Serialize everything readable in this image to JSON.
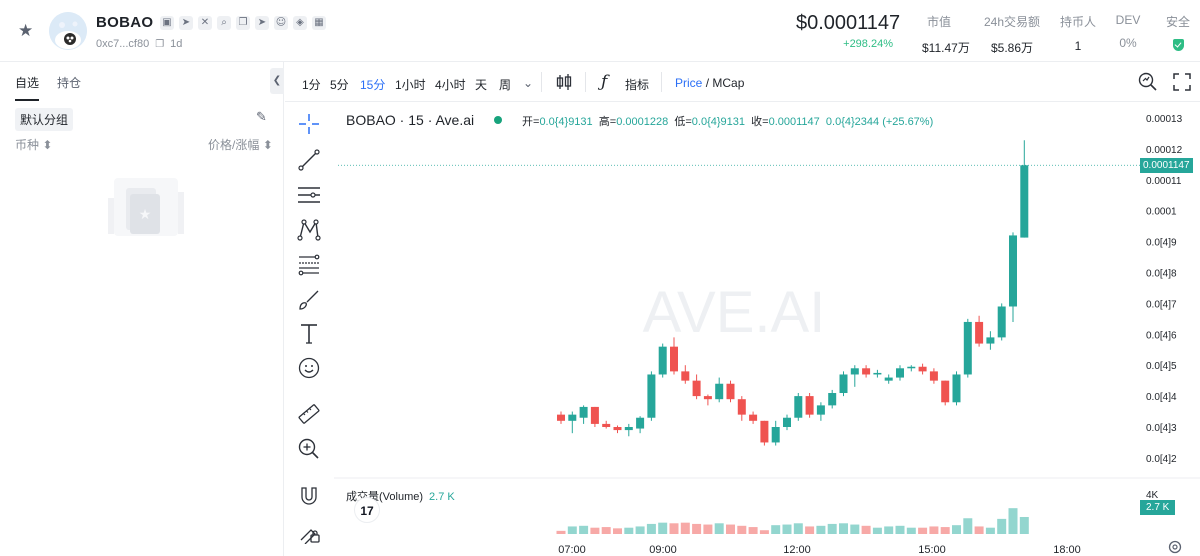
{
  "header": {
    "token_name": "BOBAO",
    "address": "0xc7...cf80",
    "age": "1d",
    "price": "$0.0001147",
    "price_change": "+298.24%",
    "stats": [
      {
        "label": "市值",
        "value": "$11.47万"
      },
      {
        "label": "24h交易额",
        "value": "$5.86万"
      },
      {
        "label": "持币人",
        "value": "1"
      },
      {
        "label": "DEV",
        "value": "0%"
      },
      {
        "label": "安全"
      }
    ]
  },
  "sidebar": {
    "tabs": [
      "自选",
      "持仓"
    ],
    "group": "默认分组",
    "col_left": "币种",
    "col_right": "价格/涨幅"
  },
  "toolbar": {
    "timeframes": [
      "1分",
      "5分",
      "15分",
      "1小时",
      "4小时",
      "天",
      "周"
    ],
    "active_timeframe": "15分",
    "indicators_label": "指标",
    "price_label": "Price",
    "mcap_label": "MCap",
    "slash": "/"
  },
  "chart": {
    "symbol": "BOBAO · 15 · Ave.ai",
    "ohlc": {
      "open_label": "开=",
      "open": "0.0{4}9131",
      "high_label": "高=",
      "high": "0.0001228",
      "low_label": "低=",
      "low": "0.0{4}9131",
      "close_label": "收=",
      "close": "0.0001147",
      "change": "0.0{4}2344 (+25.67%)"
    },
    "watermark": "AVE.AI",
    "current_price_badge": "0.0001147",
    "volume_label": "成交量(Volume)",
    "volume_value": "2.7 K",
    "volume_badge": "2.7 K",
    "volume_axis_tick": "4K",
    "colors": {
      "up": "#26a69a",
      "down": "#ef5350",
      "up_vol": "#93d6cf",
      "down_vol": "#f7a9a7"
    }
  },
  "chart_data": {
    "type": "candlestick",
    "y_ticks": [
      "0.00013",
      "0.00012",
      "0.00011",
      "0.0001",
      "0.0[4]9",
      "0.0[4]8",
      "0.0[4]7",
      "0.0[4]6",
      "0.0[4]5",
      "0.0[4]4",
      "0.0[4]3",
      "0.0[4]2"
    ],
    "ylim": [
      2e-05,
      0.00013
    ],
    "x_ticks": [
      "07:00",
      "09:00",
      "12:00",
      "15:00",
      "18:00"
    ],
    "candles": [
      {
        "o": 3.4e-05,
        "h": 3.5e-05,
        "l": 3.1e-05,
        "c": 3.2e-05
      },
      {
        "o": 3.2e-05,
        "h": 3.5e-05,
        "l": 2.8e-05,
        "c": 3.4e-05
      },
      {
        "o": 3.3e-05,
        "h": 3.7e-05,
        "l": 3.1e-05,
        "c": 3.65e-05
      },
      {
        "o": 3.65e-05,
        "h": 3.65e-05,
        "l": 3e-05,
        "c": 3.1e-05
      },
      {
        "o": 3.1e-05,
        "h": 3.2e-05,
        "l": 2.95e-05,
        "c": 3e-05
      },
      {
        "o": 3e-05,
        "h": 3.05e-05,
        "l": 2.8e-05,
        "c": 2.9e-05
      },
      {
        "o": 2.9e-05,
        "h": 3.1e-05,
        "l": 2.7e-05,
        "c": 3e-05
      },
      {
        "o": 2.95e-05,
        "h": 3.35e-05,
        "l": 2.8e-05,
        "c": 3.3e-05
      },
      {
        "o": 3.3e-05,
        "h": 4.8e-05,
        "l": 3.2e-05,
        "c": 4.7e-05
      },
      {
        "o": 4.7e-05,
        "h": 5.7e-05,
        "l": 4.6e-05,
        "c": 5.6e-05
      },
      {
        "o": 5.6e-05,
        "h": 5.9e-05,
        "l": 4.7e-05,
        "c": 4.8e-05
      },
      {
        "o": 4.8e-05,
        "h": 5e-05,
        "l": 4.4e-05,
        "c": 4.5e-05
      },
      {
        "o": 4.5e-05,
        "h": 4.7e-05,
        "l": 3.9e-05,
        "c": 4e-05
      },
      {
        "o": 4e-05,
        "h": 4.05e-05,
        "l": 3.7e-05,
        "c": 3.9e-05
      },
      {
        "o": 3.9e-05,
        "h": 4.6e-05,
        "l": 3.8e-05,
        "c": 4.4e-05
      },
      {
        "o": 4.4e-05,
        "h": 4.5e-05,
        "l": 3.8e-05,
        "c": 3.9e-05
      },
      {
        "o": 3.9e-05,
        "h": 4e-05,
        "l": 3.2e-05,
        "c": 3.4e-05
      },
      {
        "o": 3.4e-05,
        "h": 3.5e-05,
        "l": 3.1e-05,
        "c": 3.2e-05
      },
      {
        "o": 3.2e-05,
        "h": 3.2e-05,
        "l": 2.4e-05,
        "c": 2.5e-05
      },
      {
        "o": 2.5e-05,
        "h": 3.2e-05,
        "l": 2.4e-05,
        "c": 3e-05
      },
      {
        "o": 3e-05,
        "h": 3.4e-05,
        "l": 2.9e-05,
        "c": 3.3e-05
      },
      {
        "o": 3.3e-05,
        "h": 4.1e-05,
        "l": 3.2e-05,
        "c": 4e-05
      },
      {
        "o": 4e-05,
        "h": 4.1e-05,
        "l": 3.3e-05,
        "c": 3.4e-05
      },
      {
        "o": 3.4e-05,
        "h": 3.8e-05,
        "l": 3.2e-05,
        "c": 3.7e-05
      },
      {
        "o": 3.7e-05,
        "h": 4.2e-05,
        "l": 3.6e-05,
        "c": 4.1e-05
      },
      {
        "o": 4.1e-05,
        "h": 4.8e-05,
        "l": 4e-05,
        "c": 4.7e-05
      },
      {
        "o": 4.7e-05,
        "h": 5e-05,
        "l": 4.3e-05,
        "c": 4.9e-05
      },
      {
        "o": 4.9e-05,
        "h": 5e-05,
        "l": 4.6e-05,
        "c": 4.7e-05
      },
      {
        "o": 4.7e-05,
        "h": 4.85e-05,
        "l": 4.6e-05,
        "c": 4.75e-05
      },
      {
        "o": 4.5e-05,
        "h": 4.7e-05,
        "l": 4.4e-05,
        "c": 4.6e-05
      },
      {
        "o": 4.6e-05,
        "h": 5e-05,
        "l": 4.5e-05,
        "c": 4.9e-05
      },
      {
        "o": 4.9e-05,
        "h": 5e-05,
        "l": 4.8e-05,
        "c": 4.95e-05
      },
      {
        "o": 4.95e-05,
        "h": 5.05e-05,
        "l": 4.7e-05,
        "c": 4.8e-05
      },
      {
        "o": 4.8e-05,
        "h": 4.9e-05,
        "l": 4.4e-05,
        "c": 4.5e-05
      },
      {
        "o": 4.5e-05,
        "h": 4.5e-05,
        "l": 3.7e-05,
        "c": 3.8e-05
      },
      {
        "o": 3.8e-05,
        "h": 4.8e-05,
        "l": 3.7e-05,
        "c": 4.7e-05
      },
      {
        "o": 4.7e-05,
        "h": 6.5e-05,
        "l": 4.6e-05,
        "c": 6.4e-05
      },
      {
        "o": 6.4e-05,
        "h": 6.6e-05,
        "l": 5.6e-05,
        "c": 5.7e-05
      },
      {
        "o": 5.7e-05,
        "h": 6.1e-05,
        "l": 5.5e-05,
        "c": 5.9e-05
      },
      {
        "o": 5.9e-05,
        "h": 7e-05,
        "l": 5.8e-05,
        "c": 6.9e-05
      },
      {
        "o": 6.9e-05,
        "h": 9.3e-05,
        "l": 6.4e-05,
        "c": 9.2e-05
      },
      {
        "o": 9.13e-05,
        "h": 0.0001228,
        "l": 9.13e-05,
        "c": 0.0001147
      }
    ],
    "volumes": [
      0.5,
      1.2,
      1.3,
      1.0,
      1.1,
      0.9,
      1.0,
      1.2,
      1.6,
      1.8,
      1.7,
      1.8,
      1.6,
      1.5,
      1.7,
      1.5,
      1.3,
      1.1,
      0.6,
      1.4,
      1.5,
      1.7,
      1.2,
      1.3,
      1.6,
      1.7,
      1.5,
      1.3,
      1.0,
      1.2,
      1.3,
      1.0,
      1.0,
      1.2,
      1.1,
      1.4,
      2.5,
      1.2,
      1.0,
      2.4,
      4.1,
      2.7
    ]
  }
}
